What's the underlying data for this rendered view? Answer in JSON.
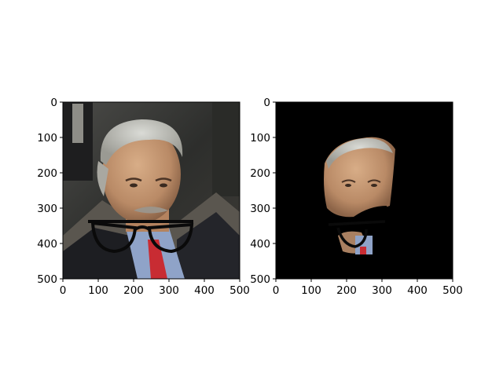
{
  "figure": {
    "background": "#ffffff"
  },
  "chart_data": [
    {
      "type": "image",
      "panel": "left",
      "content": "face photo with drawn-on glasses",
      "xlim": [
        0,
        500
      ],
      "ylim": [
        500,
        0
      ],
      "x_ticks": [
        0,
        100,
        200,
        300,
        400,
        500
      ],
      "y_ticks": [
        0,
        100,
        200,
        300,
        400,
        500
      ],
      "title": "",
      "xlabel": "",
      "ylabel": ""
    },
    {
      "type": "image",
      "panel": "right",
      "content": "segmented face on black background",
      "xlim": [
        0,
        500
      ],
      "ylim": [
        500,
        0
      ],
      "x_ticks": [
        0,
        100,
        200,
        300,
        400,
        500
      ],
      "y_ticks": [
        0,
        100,
        200,
        300,
        400,
        500
      ],
      "title": "",
      "xlabel": "",
      "ylabel": ""
    }
  ]
}
